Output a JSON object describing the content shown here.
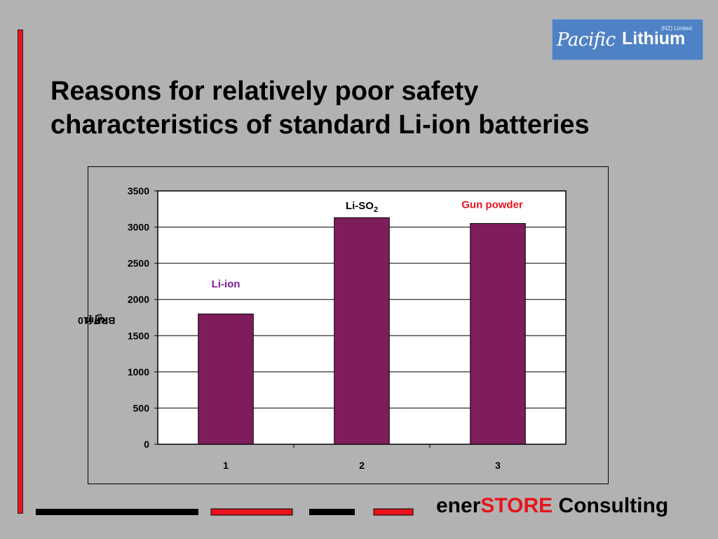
{
  "slide": {
    "title_line1": "Reasons for relatively poor safety",
    "title_line2": "characteristics of standard Li-ion batteries"
  },
  "logo": {
    "word1": "Pacific",
    "word2": "Lithium",
    "subtitle": "(NZ) Limited"
  },
  "footer": {
    "brand_prefix": "ener",
    "brand_highlight": "STORE",
    "brand_suffix": " Consulting"
  },
  "colors": {
    "bar": "#7f1d5c",
    "accent_red": "#e8141b",
    "label_purple": "#7a1a96",
    "label_red": "#e8141b"
  },
  "chart_data": {
    "type": "bar",
    "categories": [
      "1",
      "2",
      "3"
    ],
    "values": [
      1800,
      3130,
      3050
    ],
    "ylabel_base": "BRP [10",
    "ylabel_exp1": "6",
    "ylabel_mid": " kJ/m",
    "ylabel_exp2": "3",
    "ylabel_end": "]",
    "xlabel": "",
    "ylim": [
      0,
      3500
    ],
    "yticks": [
      0,
      500,
      1000,
      1500,
      2000,
      2500,
      3000,
      3500
    ],
    "grid": true,
    "annotations": [
      {
        "category": "1",
        "text": "Li-ion",
        "color": "#7a1a96",
        "sub": ""
      },
      {
        "category": "2",
        "text": "Li-SO",
        "color": "#000000",
        "sub": "2"
      },
      {
        "category": "3",
        "text": "Gun powder",
        "color": "#e8141b",
        "sub": ""
      }
    ]
  }
}
